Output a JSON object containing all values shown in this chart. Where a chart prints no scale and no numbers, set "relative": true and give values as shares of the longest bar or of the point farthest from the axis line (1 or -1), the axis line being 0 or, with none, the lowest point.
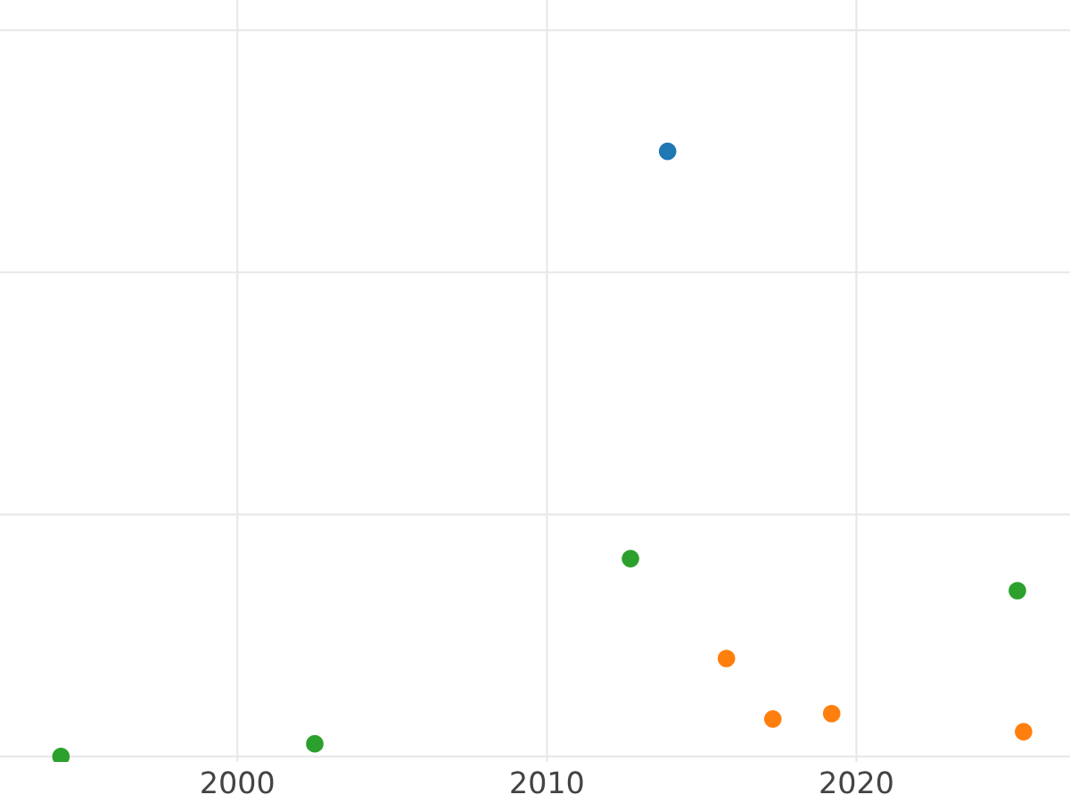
{
  "chart_data": {
    "type": "scatter",
    "relative": true,
    "grid": true,
    "legend": false,
    "marker": "circle",
    "xlim": [
      1992.33,
      2026.9
    ],
    "xticks": [
      2000,
      2010,
      2020
    ],
    "series": [
      {
        "color": "#1f77b4",
        "x": [
          2013.9
        ],
        "values": [
          1
        ]
      },
      {
        "color": "#ff7f0e",
        "x": [
          2015.8,
          2017.3,
          2019.2,
          2025.4
        ],
        "values": [
          0.162,
          0.062,
          0.071,
          0.041
        ]
      },
      {
        "color": "#2ca02c",
        "x": [
          1994.3,
          2002.5,
          2012.7,
          2025.2
        ],
        "values": [
          0,
          0.021,
          0.327,
          0.274
        ]
      }
    ]
  }
}
